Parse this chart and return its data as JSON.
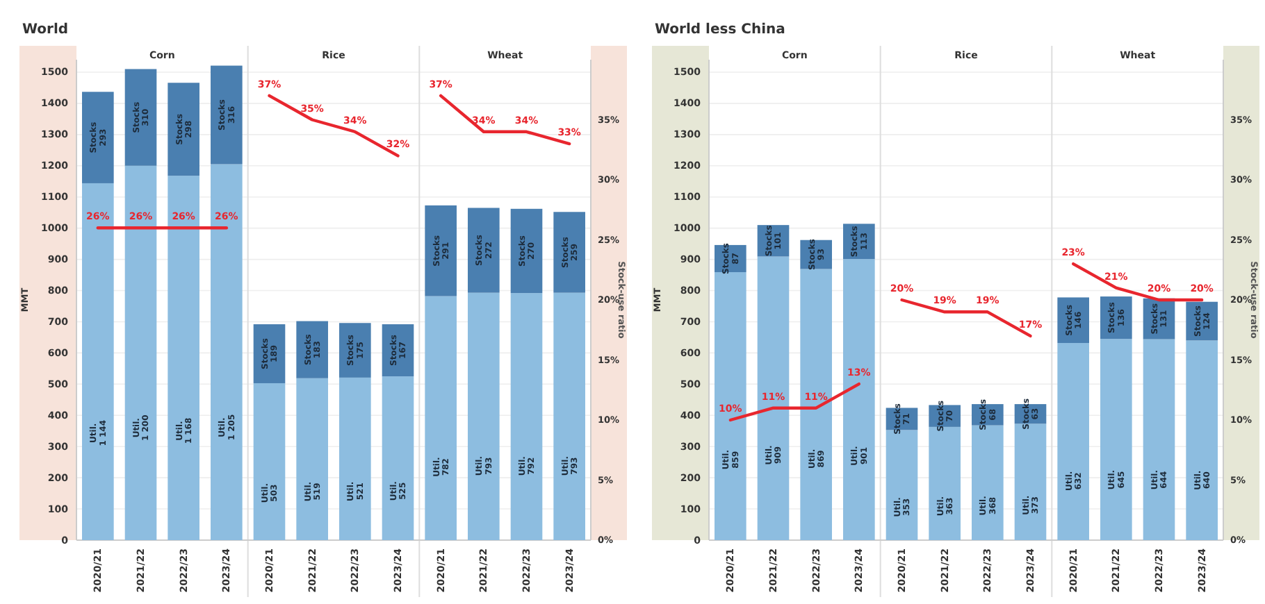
{
  "chart_data": [
    {
      "type": "bar",
      "title": "World",
      "ylabel": "MMT",
      "y2label": "Stock-use ratio",
      "annotations": [
        "Corn",
        "Rice",
        "Wheat"
      ],
      "categories": [
        "2020/21",
        "2021/22",
        "2022/23",
        "2023/24",
        "2020/21",
        "2021/22",
        "2022/23",
        "2023/24",
        "2020/21",
        "2021/22",
        "2022/23",
        "2023/24"
      ],
      "stacked": true,
      "grid": "y",
      "legend": false,
      "series": [
        {
          "name": "Util.",
          "color": "#8dbde0",
          "values": [
            1144,
            1200,
            1168,
            1205,
            503,
            519,
            521,
            525,
            782,
            793,
            792,
            793
          ],
          "value_labels": [
            "1 144",
            "1 200",
            "1 168",
            "1 205",
            "503",
            "519",
            "521",
            "525",
            "782",
            "793",
            "792",
            "793"
          ]
        },
        {
          "name": "Stocks",
          "color": "#4a7fb0",
          "values": [
            293,
            310,
            298,
            316,
            189,
            183,
            175,
            167,
            291,
            272,
            270,
            259
          ],
          "value_labels": [
            "293",
            "310",
            "298",
            "316",
            "189",
            "183",
            "175",
            "167",
            "291",
            "272",
            "270",
            "259"
          ]
        },
        {
          "type": "line",
          "axis": "y2",
          "color": "#e8262e",
          "values": [
            26,
            26,
            26,
            26,
            null,
            null,
            null,
            null,
            null,
            null,
            null,
            null
          ],
          "value_labels": [
            "26%",
            "26%",
            "26%",
            "26%",
            null,
            null,
            null,
            null,
            null,
            null,
            null,
            null
          ]
        },
        {
          "type": "line",
          "axis": "y2",
          "color": "#e8262e",
          "values": [
            null,
            null,
            null,
            null,
            37,
            35,
            34,
            32,
            null,
            null,
            null,
            null
          ],
          "value_labels": [
            null,
            null,
            null,
            null,
            "37%",
            "35%",
            "34%",
            "32%",
            null,
            null,
            null,
            null
          ]
        },
        {
          "type": "line",
          "axis": "y2",
          "color": "#e8262e",
          "values": [
            null,
            null,
            null,
            null,
            null,
            null,
            null,
            null,
            37,
            34,
            34,
            33
          ],
          "value_labels": [
            null,
            null,
            null,
            null,
            null,
            null,
            null,
            null,
            "37%",
            "34%",
            "34%",
            "33%"
          ]
        }
      ],
      "ylim": [
        0,
        1540
      ],
      "yticks": [
        0,
        100,
        200,
        300,
        400,
        500,
        600,
        700,
        800,
        900,
        1000,
        1100,
        1200,
        1300,
        1400,
        1500
      ],
      "y2lim": [
        0,
        40
      ],
      "y2ticks": [
        {
          "value": 0,
          "label": "0%"
        },
        {
          "value": 5,
          "label": "5%"
        },
        {
          "value": 10,
          "label": "10%"
        },
        {
          "value": 15,
          "label": "15%"
        },
        {
          "value": 20,
          "label": "20%"
        },
        {
          "value": 25,
          "label": "25%"
        },
        {
          "value": 30,
          "label": "30%"
        },
        {
          "value": 35,
          "label": "35%"
        }
      ]
    },
    {
      "type": "bar",
      "title": "World less China",
      "ylabel": "MMT",
      "y2label": "Stock-use ratio",
      "annotations": [
        "Corn",
        "Rice",
        "Wheat"
      ],
      "categories": [
        "2020/21",
        "2021/22",
        "2022/23",
        "2023/24",
        "2020/21",
        "2021/22",
        "2022/23",
        "2023/24",
        "2020/21",
        "2021/22",
        "2022/23",
        "2023/24"
      ],
      "stacked": true,
      "grid": "y",
      "legend": false,
      "series": [
        {
          "name": "Util.",
          "color": "#8dbde0",
          "values": [
            859,
            909,
            869,
            901,
            353,
            363,
            368,
            373,
            632,
            645,
            644,
            640
          ],
          "value_labels": [
            "859",
            "909",
            "869",
            "901",
            "353",
            "363",
            "368",
            "373",
            "632",
            "645",
            "644",
            "640"
          ]
        },
        {
          "name": "Stocks",
          "color": "#4a7fb0",
          "values": [
            87,
            101,
            93,
            113,
            71,
            70,
            68,
            63,
            146,
            136,
            131,
            124
          ],
          "value_labels": [
            "87",
            "101",
            "93",
            "113",
            "71",
            "70",
            "68",
            "63",
            "146",
            "136",
            "131",
            "124"
          ]
        },
        {
          "type": "line",
          "axis": "y2",
          "color": "#e8262e",
          "values": [
            10,
            11,
            11,
            13,
            null,
            null,
            null,
            null,
            null,
            null,
            null,
            null
          ],
          "value_labels": [
            "10%",
            "11%",
            "11%",
            "13%",
            null,
            null,
            null,
            null,
            null,
            null,
            null,
            null
          ]
        },
        {
          "type": "line",
          "axis": "y2",
          "color": "#e8262e",
          "values": [
            null,
            null,
            null,
            null,
            20,
            19,
            19,
            17,
            null,
            null,
            null,
            null
          ],
          "value_labels": [
            null,
            null,
            null,
            null,
            "20%",
            "19%",
            "19%",
            "17%",
            null,
            null,
            null,
            null
          ]
        },
        {
          "type": "line",
          "axis": "y2",
          "color": "#e8262e",
          "values": [
            null,
            null,
            null,
            null,
            null,
            null,
            null,
            null,
            23,
            21,
            20,
            20
          ],
          "value_labels": [
            null,
            null,
            null,
            null,
            null,
            null,
            null,
            null,
            "23%",
            "21%",
            "20%",
            "20%"
          ]
        }
      ],
      "ylim": [
        0,
        1540
      ],
      "yticks": [
        0,
        100,
        200,
        300,
        400,
        500,
        600,
        700,
        800,
        900,
        1000,
        1100,
        1200,
        1300,
        1400,
        1500
      ],
      "y2lim": [
        0,
        40
      ],
      "y2ticks": [
        {
          "value": 0,
          "label": "0%"
        },
        {
          "value": 5,
          "label": "5%"
        },
        {
          "value": 10,
          "label": "10%"
        },
        {
          "value": 15,
          "label": "15%"
        },
        {
          "value": 20,
          "label": "20%"
        },
        {
          "value": 25,
          "label": "25%"
        },
        {
          "value": 30,
          "label": "30%"
        },
        {
          "value": 35,
          "label": "35%"
        }
      ]
    }
  ]
}
